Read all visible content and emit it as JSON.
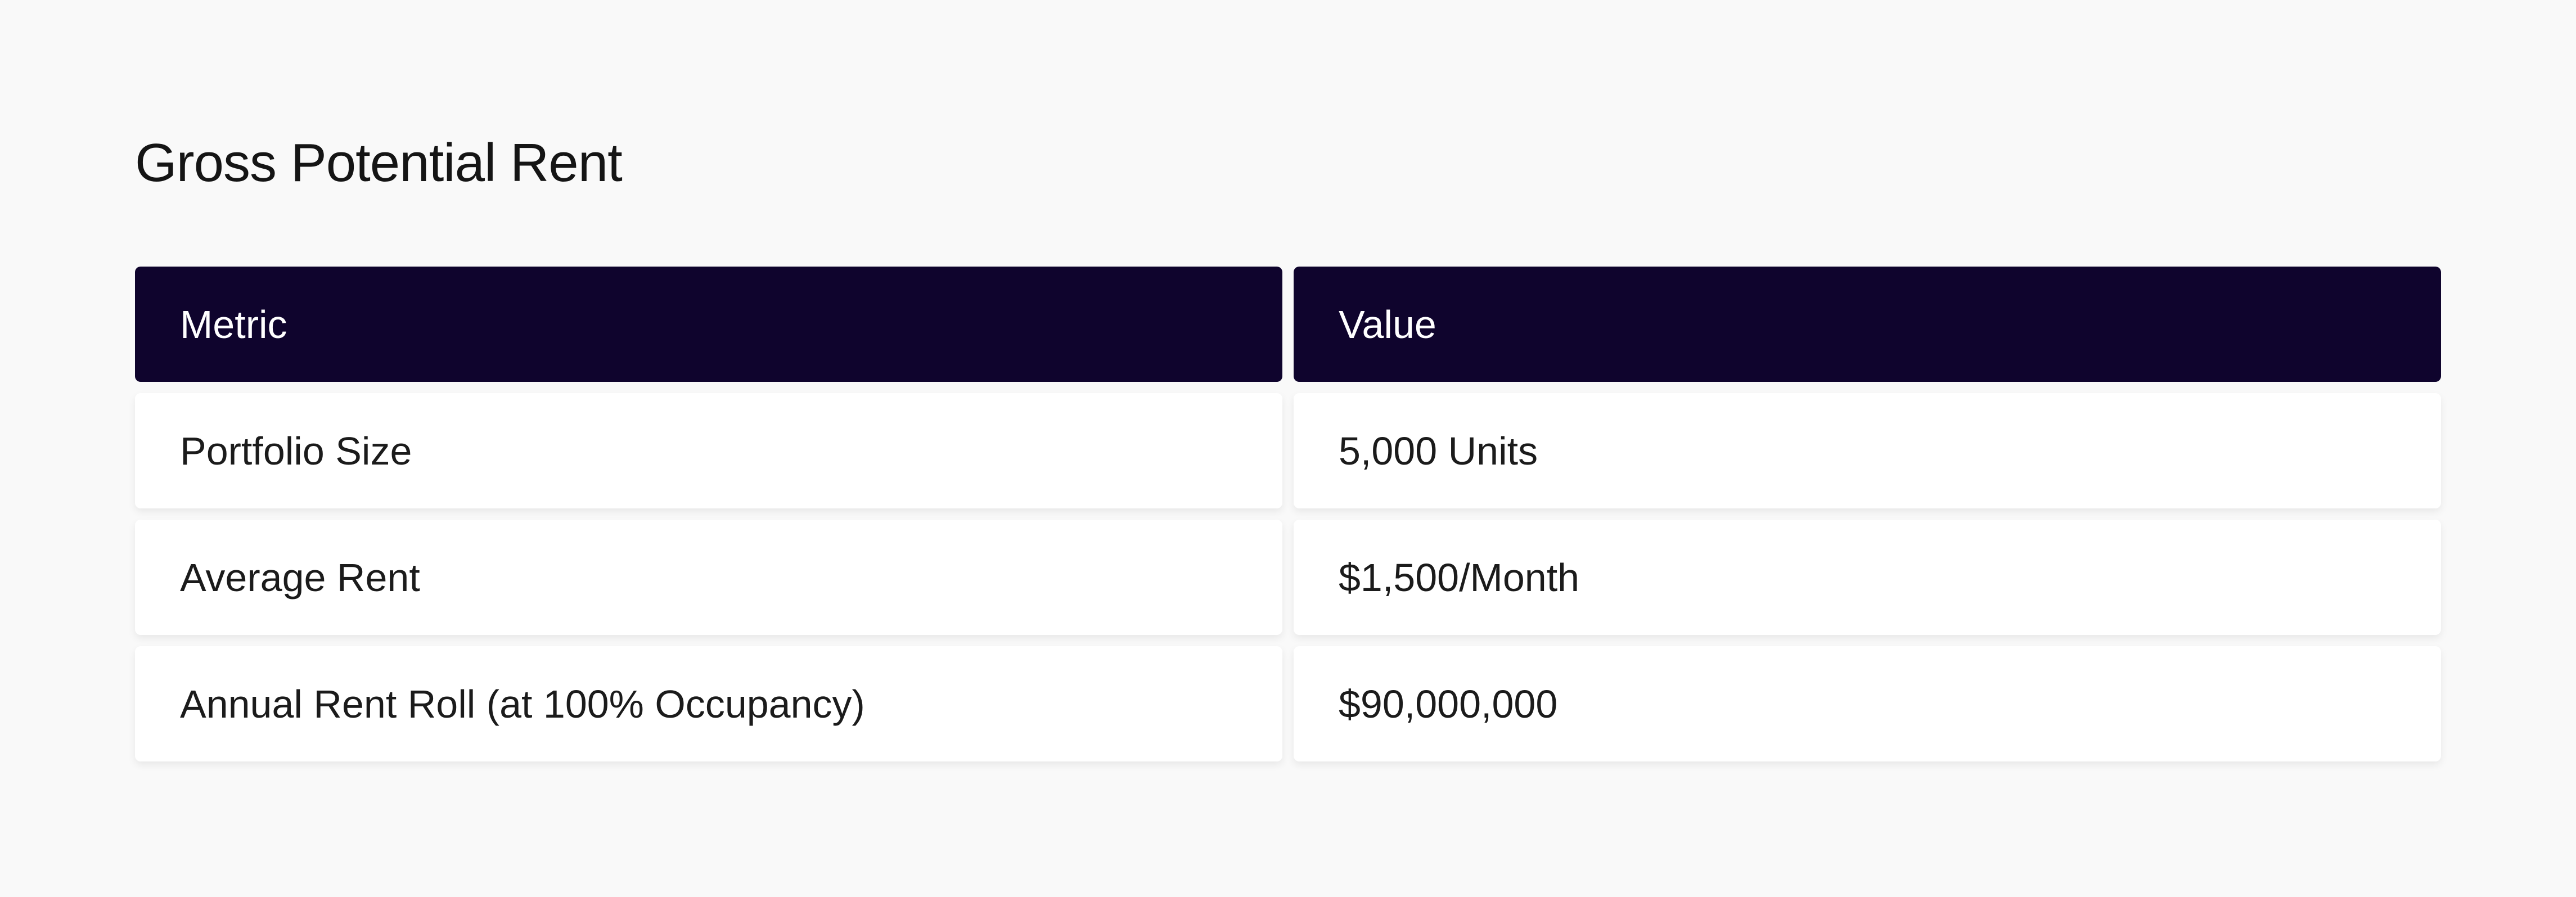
{
  "title": "Gross Potential Rent",
  "table": {
    "headers": [
      "Metric",
      "Value"
    ],
    "rows": [
      [
        "Portfolio Size",
        "5,000 Units"
      ],
      [
        "Average Rent",
        "$1,500/Month"
      ],
      [
        "Annual Rent Roll (at 100% Occupancy)",
        "$90,000,000"
      ]
    ]
  },
  "colors": {
    "header_bg": "#0f042d",
    "page_bg": "#f9f9f9",
    "cell_bg": "#ffffff"
  }
}
